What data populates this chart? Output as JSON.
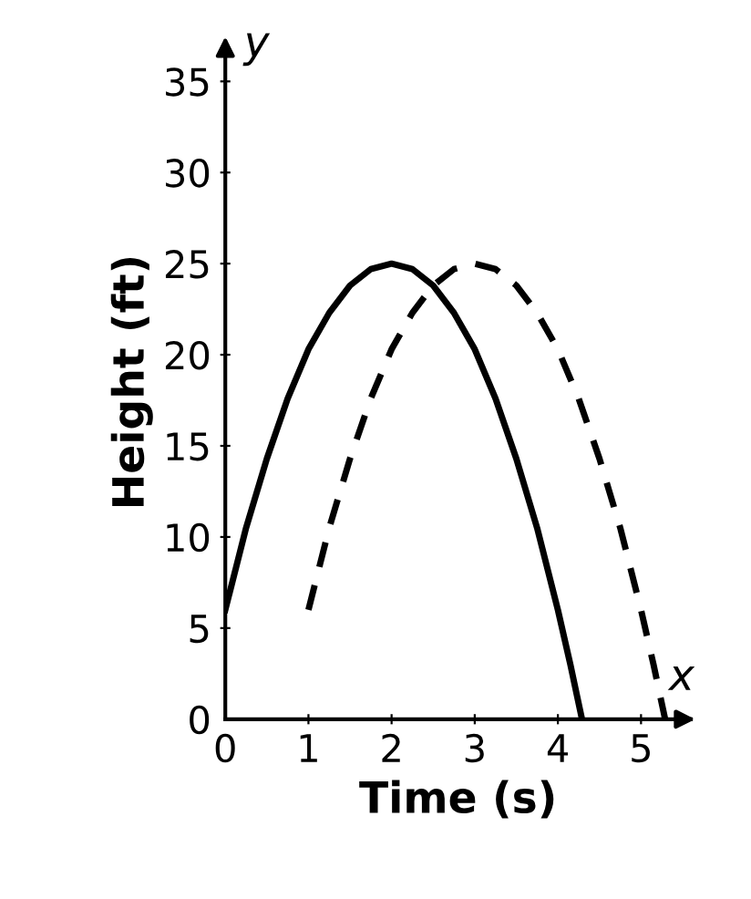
{
  "chart_data": {
    "type": "line",
    "xlabel": "Time (s)",
    "ylabel": "Height (ft)",
    "xlim": [
      0,
      5.6
    ],
    "ylim": [
      0,
      37
    ],
    "xticks": [
      0,
      1,
      2,
      3,
      4,
      5
    ],
    "yticks": [
      0,
      5,
      10,
      15,
      20,
      25,
      30,
      35
    ],
    "grid": false,
    "marker": "none",
    "annotations": [
      "y",
      "x"
    ],
    "series": [
      {
        "color": "#000000",
        "line_style": "solid",
        "x": [
          0,
          0.25,
          0.5,
          0.75,
          1,
          1.25,
          1.5,
          1.75,
          2,
          2.25,
          2.5,
          2.75,
          3,
          3.25,
          3.5,
          3.75,
          4,
          4.15,
          4.29
        ],
        "values": [
          6,
          10.5,
          14.3,
          17.6,
          20.3,
          22.3,
          23.8,
          24.7,
          25,
          24.7,
          23.8,
          22.3,
          20.3,
          17.6,
          14.3,
          10.5,
          6,
          3,
          0
        ]
      },
      {
        "color": "#000000",
        "line_style": "dashed",
        "x": [
          1,
          1.25,
          1.5,
          1.75,
          2,
          2.25,
          2.5,
          2.75,
          3,
          3.25,
          3.5,
          3.75,
          4,
          4.25,
          4.5,
          4.75,
          5,
          5.15,
          5.29
        ],
        "values": [
          6,
          10.5,
          14.3,
          17.6,
          20.3,
          22.3,
          23.8,
          24.7,
          25,
          24.7,
          23.8,
          22.3,
          20.3,
          17.6,
          14.3,
          10.5,
          6,
          3,
          0
        ]
      }
    ]
  }
}
